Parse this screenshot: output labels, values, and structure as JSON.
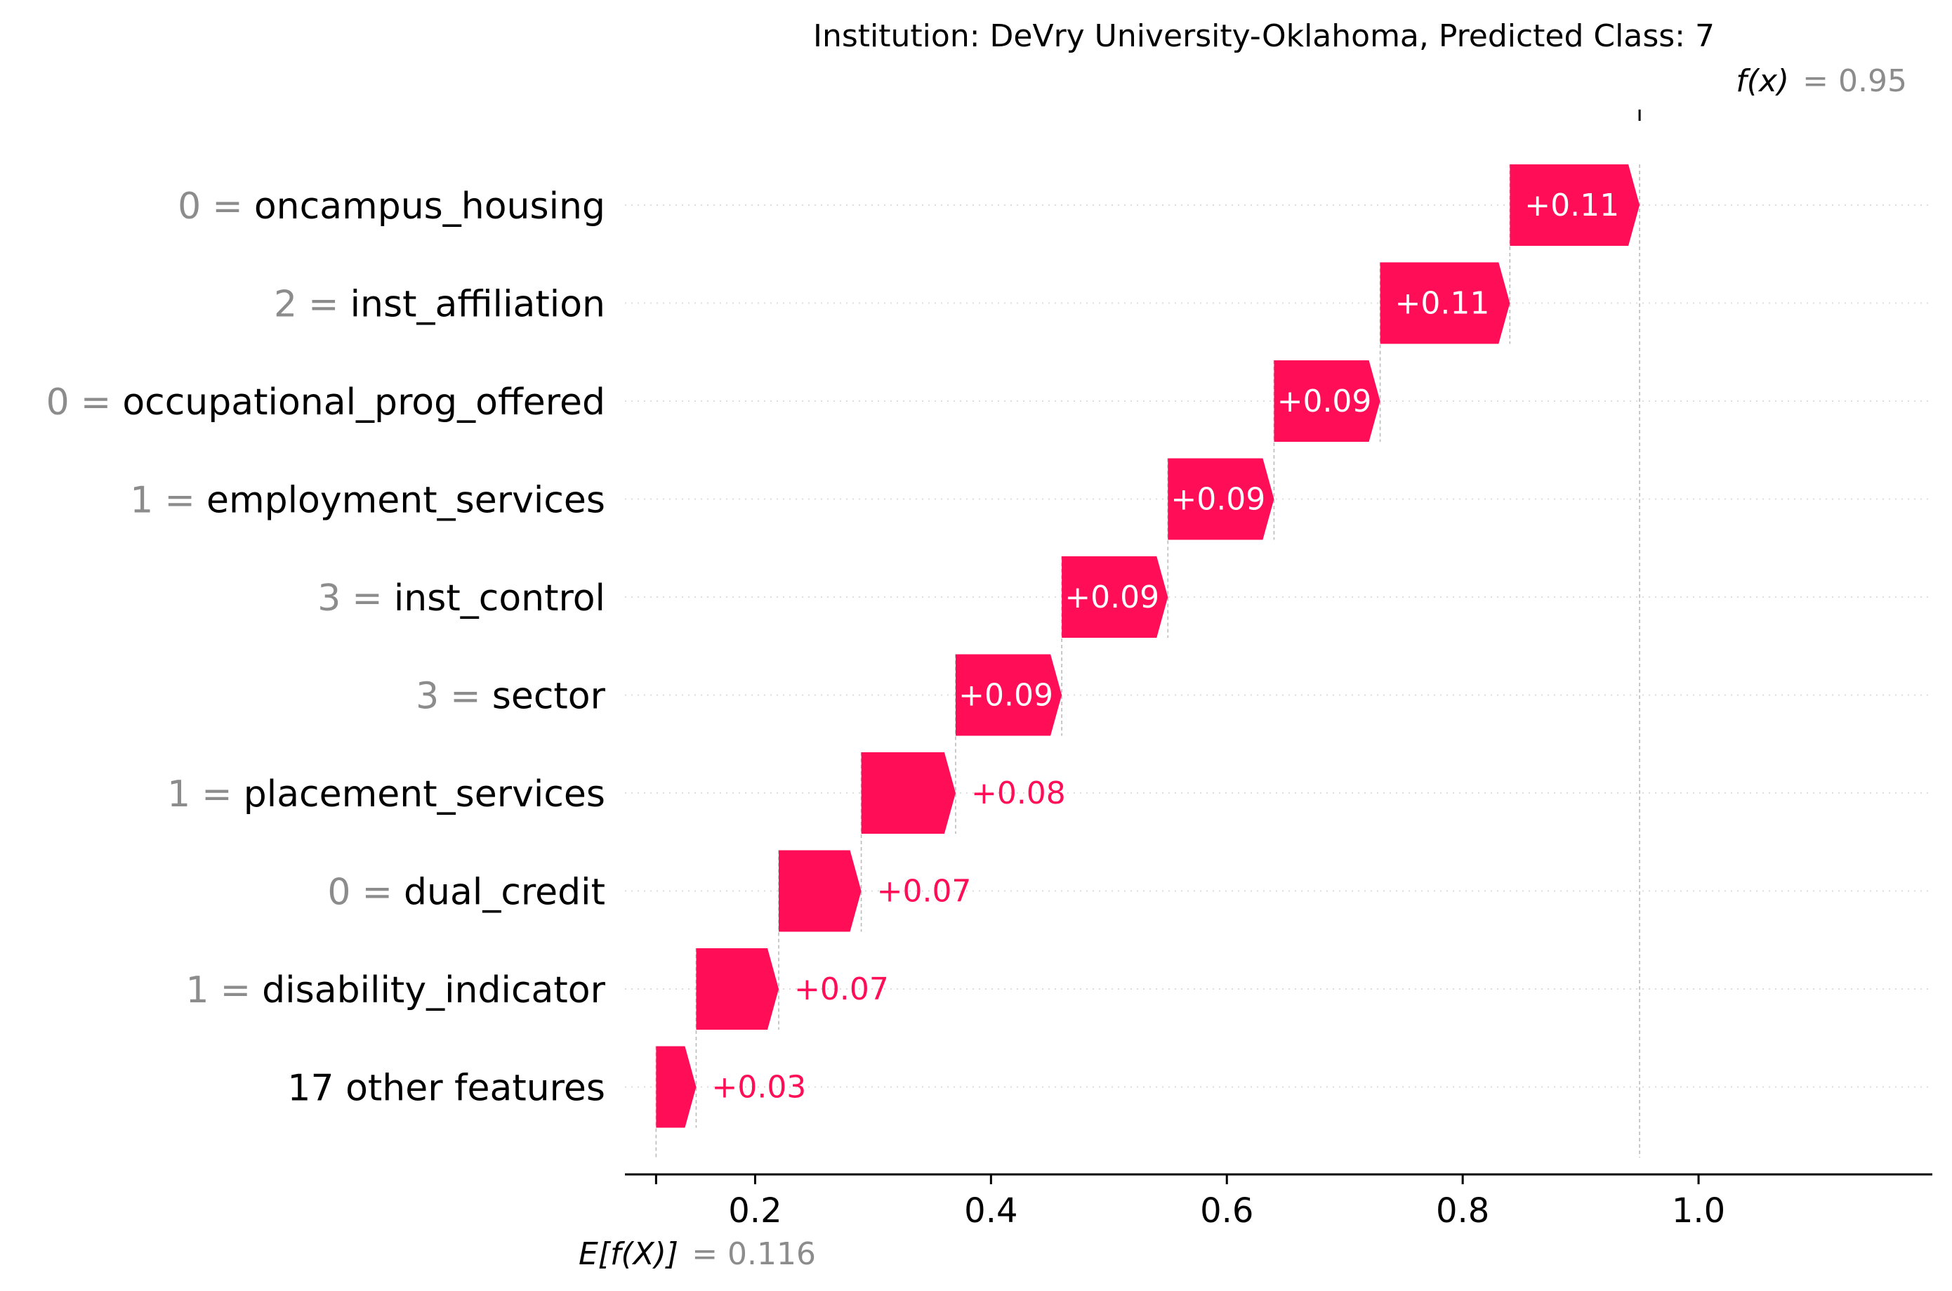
{
  "chart_data": {
    "type": "waterfall",
    "title": "Institution: DeVry University-Oklahoma, Predicted Class: 7",
    "base_value": 0.116,
    "base_label": "E[f(X)]",
    "base_value_text": "= 0.116",
    "output_value": 0.95,
    "output_label": "f(x)",
    "output_value_text": "= 0.95",
    "features": [
      {
        "value": "0",
        "name": "oncampus_housing",
        "contribution": 0.11,
        "label": "+0.11"
      },
      {
        "value": "2",
        "name": "inst_affiliation",
        "contribution": 0.11,
        "label": "+0.11"
      },
      {
        "value": "0",
        "name": "occupational_prog_offered",
        "contribution": 0.09,
        "label": "+0.09"
      },
      {
        "value": "1",
        "name": "employment_services",
        "contribution": 0.09,
        "label": "+0.09"
      },
      {
        "value": "3",
        "name": "inst_control",
        "contribution": 0.09,
        "label": "+0.09"
      },
      {
        "value": "3",
        "name": "sector",
        "contribution": 0.09,
        "label": "+0.09"
      },
      {
        "value": "1",
        "name": "placement_services",
        "contribution": 0.08,
        "label": "+0.08"
      },
      {
        "value": "0",
        "name": "dual_credit",
        "contribution": 0.07,
        "label": "+0.07"
      },
      {
        "value": "1",
        "name": "disability_indicator",
        "contribution": 0.07,
        "label": "+0.07"
      },
      {
        "value": "",
        "name": "17 other features",
        "contribution": 0.03,
        "label": "+0.03"
      }
    ],
    "xlim": [
      0.1,
      1.09
    ],
    "xticks": [
      0.2,
      0.4,
      0.6,
      0.8,
      1.0
    ],
    "xtick_labels": [
      "0.2",
      "0.4",
      "0.6",
      "0.8",
      "1.0"
    ],
    "grid": "horizontal dotted",
    "colors": {
      "positive": "#ff0d57",
      "negative": "#1e88e5",
      "value_text": "#8c8c8c",
      "guide_line": "#bbbbbb",
      "grid_line": "#dddddd",
      "axis": "#000000"
    }
  }
}
